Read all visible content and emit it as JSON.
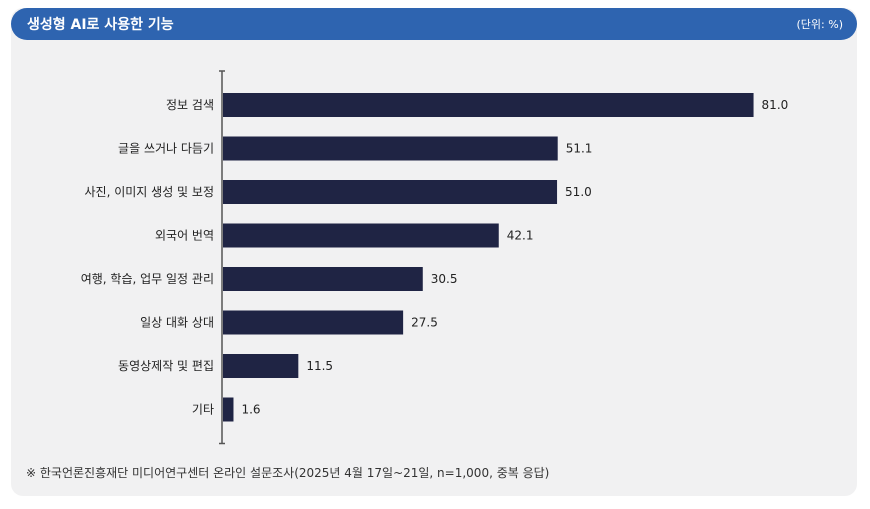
{
  "header": {
    "title": "생성형 AI로 사용한 기능",
    "unit": "(단위: %)"
  },
  "colors": {
    "header_bg": "#2e64b0",
    "panel_bg": "#f1f1f2",
    "bar": "#1f2444",
    "axis": "#555555"
  },
  "chart_data": {
    "type": "bar",
    "orientation": "horizontal",
    "categories": [
      "정보 검색",
      "글을 쓰거나 다듬기",
      "사진, 이미지 생성 및 보정",
      "외국어 번역",
      "여행, 학습, 업무 일정 관리",
      "일상 대화 상대",
      "동영상제작 및 편집",
      "기타"
    ],
    "values": [
      81.0,
      51.1,
      51.0,
      42.1,
      30.5,
      27.5,
      11.5,
      1.6
    ],
    "value_labels": [
      "81.0",
      "51.1",
      "51.0",
      "42.1",
      "30.5",
      "27.5",
      "11.5",
      "1.6"
    ],
    "xlim": [
      0,
      100
    ],
    "grid": false
  },
  "footnote": "※ 한국언론진흥재단 미디어연구센터 온라인 설문조사(2025년 4월 17일~21일, n=1,000, 중복 응답)"
}
